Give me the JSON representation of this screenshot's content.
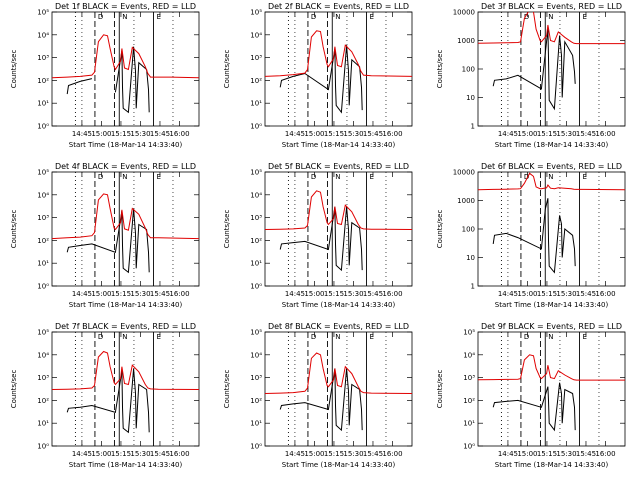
{
  "figure": {
    "xlabel": "Start Time (18-Mar-14 14:33:40)",
    "ylabel": "Counts/sec",
    "xticks": [
      "14:45",
      "15:00",
      "15:15",
      "15:30",
      "15:45",
      "16:00"
    ],
    "flag_labels": [
      "D",
      "N",
      "E"
    ],
    "colors": {
      "events": "#000000",
      "lld": "#e00000"
    }
  },
  "chart_data": [
    {
      "type": "line",
      "title": "Det 1f BLACK = Events, RED = LLD",
      "ylabel": "Counts/sec",
      "xlabel": "Start Time (18-Mar-14 14:33:40)",
      "yscale": "log",
      "ylim": [
        1,
        100000
      ],
      "yticks": [
        "10⁰",
        "10¹",
        "10²",
        "10³",
        "10⁴",
        "10⁵"
      ],
      "xlim_min": [
        -11.7,
        101.3
      ],
      "series": [
        {
          "name": "BLACK = Events",
          "color": "#000000",
          "x": [
            0,
            1,
            10,
            19,
            20,
            25.3,
            32,
            36,
            37,
            42,
            42.5,
            43,
            47,
            51,
            52.5,
            53,
            55,
            61,
            62.5,
            63
          ],
          "y": [
            25,
            60,
            90,
            120,
            0,
            0,
            0,
            0,
            30,
            2000,
            50,
            6,
            4,
            3000,
            250,
            6,
            600,
            300,
            40,
            4
          ]
        },
        {
          "name": "RED = LLD",
          "color": "#e00000",
          "x": [
            -11.7,
            0,
            10,
            19,
            21,
            24,
            28,
            31,
            33,
            36,
            37,
            41,
            42,
            44,
            47,
            50,
            55,
            60,
            62,
            64,
            70,
            80,
            101.3
          ],
          "y": [
            130,
            140,
            150,
            170,
            230,
            5000,
            10000,
            9000,
            2500,
            400,
            300,
            700,
            2500,
            350,
            300,
            2800,
            1500,
            400,
            200,
            140,
            140,
            140,
            130
          ]
        }
      ]
    },
    {
      "type": "line",
      "title": "Det 2f BLACK = Events, RED = LLD",
      "ylabel": "Counts/sec",
      "xlabel": "Start Time (18-Mar-14 14:33:40)",
      "yscale": "log",
      "ylim": [
        1,
        100000
      ],
      "yticks": [
        "10⁰",
        "10¹",
        "10²",
        "10³",
        "10⁴",
        "10⁵"
      ],
      "xlim_min": [
        -11.7,
        101.3
      ],
      "series": [
        {
          "name": "BLACK = Events",
          "color": "#000000",
          "x": [
            0,
            1,
            10,
            19,
            37,
            42,
            42.5,
            43,
            47,
            51,
            52.5,
            53,
            55,
            61,
            62.5,
            63
          ],
          "y": [
            50,
            100,
            150,
            200,
            40,
            2500,
            60,
            8,
            4,
            3500,
            250,
            8,
            800,
            400,
            50,
            5
          ]
        },
        {
          "name": "RED = LLD",
          "color": "#e00000",
          "x": [
            -11.7,
            0,
            10,
            19,
            21,
            24,
            28,
            31,
            33,
            36,
            37,
            41,
            42,
            44,
            47,
            50,
            55,
            60,
            62,
            64,
            70,
            101.3
          ],
          "y": [
            150,
            160,
            180,
            210,
            300,
            8000,
            15000,
            14000,
            3000,
            500,
            400,
            900,
            3000,
            450,
            400,
            3500,
            1800,
            500,
            250,
            170,
            160,
            150
          ]
        }
      ]
    },
    {
      "type": "line",
      "title": "Det 3f BLACK = Events, RED = LLD",
      "ylabel": "Counts/sec",
      "xlabel": "Start Time (18-Mar-14 14:33:40)",
      "yscale": "log",
      "ylim": [
        1,
        10000
      ],
      "yticks": [
        "1",
        "10",
        "100",
        "1000",
        "10000"
      ],
      "xlim_min": [
        -11.7,
        101.3
      ],
      "series": [
        {
          "name": "BLACK = Events",
          "color": "#000000",
          "x": [
            0,
            1,
            10,
            19,
            37,
            42,
            42.5,
            43,
            47,
            51,
            52.5,
            53,
            55,
            61,
            62.5,
            63
          ],
          "y": [
            25,
            40,
            45,
            60,
            20,
            2500,
            250,
            8,
            4,
            1500,
            300,
            10,
            900,
            300,
            80,
            30
          ]
        },
        {
          "name": "RED = LLD",
          "color": "#e00000",
          "x": [
            -11.7,
            0,
            10,
            19,
            21,
            24,
            28,
            31,
            33,
            36,
            37,
            41,
            42,
            44,
            47,
            50,
            55,
            60,
            62,
            64,
            70,
            101.3
          ],
          "y": [
            800,
            820,
            830,
            850,
            900,
            6000,
            12000,
            10000,
            2500,
            1000,
            900,
            1500,
            3500,
            1000,
            900,
            2000,
            1300,
            900,
            800,
            780,
            780,
            780
          ]
        }
      ]
    },
    {
      "type": "line",
      "title": "Det 4f BLACK = Events, RED = LLD",
      "ylabel": "Counts/sec",
      "xlabel": "Start Time (18-Mar-14 14:33:40)",
      "yscale": "log",
      "ylim": [
        1,
        100000
      ],
      "yticks": [
        "10⁰",
        "10¹",
        "10²",
        "10³",
        "10⁴",
        "10⁵"
      ],
      "xlim_min": [
        -11.7,
        101.3
      ],
      "series": [
        {
          "name": "BLACK = Events",
          "color": "#000000",
          "x": [
            0,
            1,
            10,
            19,
            37,
            42,
            42.5,
            43,
            47,
            51,
            52.5,
            53,
            55,
            61,
            62.5,
            63
          ],
          "y": [
            30,
            50,
            60,
            70,
            30,
            2000,
            60,
            6,
            4,
            2500,
            200,
            6,
            500,
            300,
            30,
            4
          ]
        },
        {
          "name": "RED = LLD",
          "color": "#e00000",
          "x": [
            -11.7,
            0,
            10,
            19,
            21,
            24,
            28,
            31,
            33,
            36,
            37,
            41,
            42,
            44,
            47,
            50,
            55,
            60,
            62,
            64,
            70,
            101.3
          ],
          "y": [
            120,
            130,
            140,
            160,
            220,
            6000,
            11000,
            10000,
            2500,
            350,
            300,
            600,
            2200,
            320,
            280,
            2500,
            1400,
            350,
            180,
            130,
            130,
            120
          ]
        }
      ]
    },
    {
      "type": "line",
      "title": "Det 5f BLACK = Events, RED = LLD",
      "ylabel": "Counts/sec",
      "xlabel": "Start Time (18-Mar-14 14:33:40)",
      "yscale": "log",
      "ylim": [
        1,
        100000
      ],
      "yticks": [
        "10⁰",
        "10¹",
        "10²",
        "10³",
        "10⁴",
        "10⁵"
      ],
      "xlim_min": [
        -11.7,
        101.3
      ],
      "series": [
        {
          "name": "BLACK = Events",
          "color": "#000000",
          "x": [
            0,
            1,
            10,
            19,
            37,
            42,
            42.5,
            43,
            47,
            51,
            52.5,
            53,
            55,
            61,
            62.5,
            63
          ],
          "y": [
            40,
            70,
            80,
            90,
            40,
            3000,
            70,
            8,
            5,
            3000,
            300,
            8,
            600,
            350,
            40,
            5
          ]
        },
        {
          "name": "RED = LLD",
          "color": "#e00000",
          "x": [
            -11.7,
            0,
            10,
            19,
            21,
            24,
            28,
            31,
            33,
            36,
            37,
            41,
            42,
            44,
            47,
            50,
            55,
            60,
            62,
            64,
            70,
            101.3
          ],
          "y": [
            300,
            310,
            320,
            350,
            450,
            8000,
            15000,
            13000,
            3000,
            600,
            500,
            900,
            3000,
            550,
            500,
            3500,
            1800,
            500,
            350,
            320,
            310,
            300
          ]
        }
      ]
    },
    {
      "type": "line",
      "title": "Det 6f BLACK = Events, RED = LLD",
      "ylabel": "Counts/sec",
      "xlabel": "Start Time (18-Mar-14 14:33:40)",
      "yscale": "log",
      "ylim": [
        1,
        10000
      ],
      "yticks": [
        "1",
        "10",
        "100",
        "1000",
        "10000"
      ],
      "xlim_min": [
        -11.7,
        101.3
      ],
      "series": [
        {
          "name": "BLACK = Events",
          "color": "#000000",
          "x": [
            0,
            1,
            10,
            19,
            37,
            40,
            42,
            42.5,
            43,
            47,
            51,
            52.5,
            53,
            55,
            61,
            62.5,
            63
          ],
          "y": [
            30,
            60,
            70,
            50,
            20,
            500,
            1200,
            40,
            5,
            3,
            300,
            150,
            10,
            100,
            60,
            20,
            5
          ]
        },
        {
          "name": "RED = LLD",
          "color": "#e00000",
          "x": [
            -11.7,
            0,
            10,
            19,
            21,
            24,
            28,
            31,
            33,
            36,
            37,
            41,
            42,
            44,
            47,
            50,
            55,
            60,
            62,
            64,
            70,
            101.3
          ],
          "y": [
            2400,
            2450,
            2500,
            2550,
            2600,
            4000,
            9000,
            7000,
            3000,
            2600,
            2600,
            2800,
            3500,
            2700,
            2600,
            2800,
            2700,
            2600,
            2500,
            2450,
            2450,
            2400
          ]
        }
      ]
    },
    {
      "type": "line",
      "title": "Det 7f BLACK = Events, RED = LLD",
      "ylabel": "Counts/sec",
      "xlabel": "Start Time (18-Mar-14 14:33:40)",
      "yscale": "log",
      "ylim": [
        1,
        100000
      ],
      "yticks": [
        "10⁰",
        "10¹",
        "10²",
        "10³",
        "10⁴",
        "10⁵"
      ],
      "xlim_min": [
        -11.7,
        101.3
      ],
      "series": [
        {
          "name": "BLACK = Events",
          "color": "#000000",
          "x": [
            0,
            1,
            10,
            19,
            37,
            42,
            42.5,
            43,
            47,
            51,
            52.5,
            53,
            55,
            61,
            62.5,
            63
          ],
          "y": [
            30,
            45,
            50,
            60,
            30,
            2000,
            50,
            6,
            4,
            2500,
            200,
            6,
            500,
            300,
            30,
            4
          ]
        },
        {
          "name": "RED = LLD",
          "color": "#e00000",
          "x": [
            -11.7,
            0,
            10,
            19,
            21,
            24,
            28,
            31,
            33,
            36,
            37,
            41,
            42,
            44,
            47,
            50,
            55,
            60,
            62,
            64,
            70,
            101.3
          ],
          "y": [
            300,
            310,
            320,
            350,
            450,
            8000,
            14000,
            12000,
            3000,
            600,
            500,
            900,
            3000,
            550,
            500,
            3500,
            1800,
            500,
            350,
            320,
            310,
            300
          ]
        }
      ]
    },
    {
      "type": "line",
      "title": "Det 8f BLACK = Events, RED = LLD",
      "ylabel": "Counts/sec",
      "xlabel": "Start Time (18-Mar-14 14:33:40)",
      "yscale": "log",
      "ylim": [
        1,
        100000
      ],
      "yticks": [
        "10⁰",
        "10¹",
        "10²",
        "10³",
        "10⁴",
        "10⁵"
      ],
      "xlim_min": [
        -11.7,
        101.3
      ],
      "series": [
        {
          "name": "BLACK = Events",
          "color": "#000000",
          "x": [
            0,
            1,
            10,
            19,
            37,
            42,
            42.5,
            43,
            47,
            51,
            52.5,
            53,
            55,
            61,
            62.5,
            63
          ],
          "y": [
            40,
            60,
            70,
            80,
            40,
            2500,
            60,
            8,
            5,
            2500,
            250,
            8,
            500,
            300,
            40,
            5
          ]
        },
        {
          "name": "RED = LLD",
          "color": "#e00000",
          "x": [
            -11.7,
            0,
            10,
            19,
            21,
            24,
            28,
            31,
            33,
            36,
            37,
            41,
            42,
            44,
            47,
            50,
            55,
            60,
            62,
            64,
            70,
            101.3
          ],
          "y": [
            200,
            210,
            220,
            250,
            350,
            7000,
            12000,
            10000,
            2500,
            450,
            400,
            800,
            2500,
            450,
            400,
            3000,
            1500,
            400,
            250,
            220,
            210,
            200
          ]
        }
      ]
    },
    {
      "type": "line",
      "title": "Det 9f BLACK = Events, RED = LLD",
      "ylabel": "Counts/sec",
      "xlabel": "Start Time (18-Mar-14 14:33:40)",
      "yscale": "log",
      "ylim": [
        1,
        100000
      ],
      "yticks": [
        "10⁰",
        "10¹",
        "10²",
        "10³",
        "10⁴",
        "10⁵"
      ],
      "xlim_min": [
        -11.7,
        101.3
      ],
      "series": [
        {
          "name": "BLACK = Events",
          "color": "#000000",
          "x": [
            0,
            1,
            10,
            19,
            37,
            42,
            42.5,
            43,
            47,
            51,
            52.5,
            53,
            55,
            61,
            62.5,
            63
          ],
          "y": [
            50,
            80,
            90,
            100,
            50,
            400,
            100,
            10,
            5,
            600,
            200,
            10,
            300,
            200,
            50,
            5
          ]
        },
        {
          "name": "RED = LLD",
          "color": "#e00000",
          "x": [
            -11.7,
            0,
            10,
            19,
            21,
            24,
            28,
            31,
            33,
            36,
            37,
            41,
            42,
            44,
            47,
            50,
            55,
            60,
            62,
            64,
            70,
            101.3
          ],
          "y": [
            800,
            820,
            830,
            850,
            900,
            6000,
            10000,
            9000,
            2500,
            1000,
            900,
            1500,
            3500,
            1000,
            900,
            2000,
            1300,
            900,
            800,
            780,
            780,
            780
          ]
        }
      ]
    }
  ]
}
